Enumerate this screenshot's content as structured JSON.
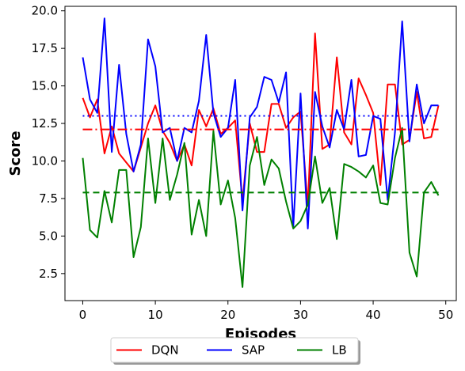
{
  "chart_data": {
    "type": "line",
    "title": "",
    "xlabel": "Episodes",
    "ylabel": "Score",
    "xlim": [
      -2.45,
      51.45
    ],
    "ylim": [
      0.7,
      20.3
    ],
    "xticks": [
      0,
      10,
      20,
      30,
      40,
      50
    ],
    "yticks": [
      2.5,
      5.0,
      7.5,
      10.0,
      12.5,
      15.0,
      17.5,
      20.0
    ],
    "grid": false,
    "legend_position": "bottom-center",
    "x": [
      0,
      1,
      2,
      3,
      4,
      5,
      6,
      7,
      8,
      9,
      10,
      11,
      12,
      13,
      14,
      15,
      16,
      17,
      18,
      19,
      20,
      21,
      22,
      23,
      24,
      25,
      26,
      27,
      28,
      29,
      30,
      31,
      32,
      33,
      34,
      35,
      36,
      37,
      38,
      39,
      40,
      41,
      42,
      43,
      44,
      45,
      46,
      47,
      48,
      49
    ],
    "series": [
      {
        "name": "DQN",
        "color": "#ff0000",
        "values": [
          14.2,
          12.9,
          14.1,
          10.5,
          12.3,
          10.5,
          9.9,
          9.3,
          10.9,
          12.5,
          13.7,
          12.0,
          11.2,
          10.0,
          11.1,
          9.7,
          13.4,
          12.3,
          13.5,
          11.8,
          12.2,
          12.7,
          7.3,
          12.5,
          10.6,
          10.6,
          13.8,
          13.8,
          12.2,
          12.9,
          13.3,
          7.0,
          18.5,
          10.8,
          11.1,
          16.9,
          11.9,
          11.1,
          15.5,
          14.4,
          13.2,
          8.4,
          15.1,
          15.1,
          11.1,
          11.4,
          14.6,
          11.5,
          11.6,
          13.7
        ],
        "mean": 12.1,
        "mean_style": "dashdot"
      },
      {
        "name": "SAP",
        "color": "#0000ff",
        "values": [
          16.9,
          14.1,
          13.2,
          19.5,
          10.6,
          16.4,
          11.8,
          9.3,
          11.1,
          18.1,
          16.3,
          11.9,
          12.2,
          10.0,
          12.2,
          11.9,
          14.0,
          18.4,
          13.2,
          11.6,
          12.2,
          15.4,
          6.7,
          12.9,
          13.6,
          15.6,
          15.4,
          13.9,
          15.9,
          5.6,
          14.5,
          5.5,
          14.6,
          12.3,
          10.9,
          13.4,
          12.1,
          15.4,
          10.3,
          10.4,
          13.0,
          12.8,
          7.4,
          11.9,
          19.3,
          11.3,
          15.1,
          12.5,
          13.7,
          13.7
        ],
        "mean": 13.0,
        "mean_style": "dotted"
      },
      {
        "name": "LB",
        "color": "#008000",
        "values": [
          10.2,
          5.4,
          4.9,
          8.0,
          5.9,
          9.4,
          9.4,
          3.6,
          5.6,
          11.5,
          7.2,
          11.5,
          7.4,
          9.1,
          11.2,
          5.1,
          7.4,
          5.0,
          12.0,
          7.1,
          8.7,
          6.2,
          1.6,
          9.7,
          11.6,
          8.4,
          10.1,
          9.5,
          7.3,
          5.5,
          6.0,
          7.1,
          10.3,
          7.2,
          8.2,
          4.8,
          9.8,
          9.6,
          9.3,
          8.9,
          9.7,
          7.2,
          7.1,
          10.2,
          12.2,
          3.9,
          2.3,
          7.9,
          8.6,
          7.7
        ],
        "mean": 7.9,
        "mean_style": "dashed"
      }
    ]
  }
}
